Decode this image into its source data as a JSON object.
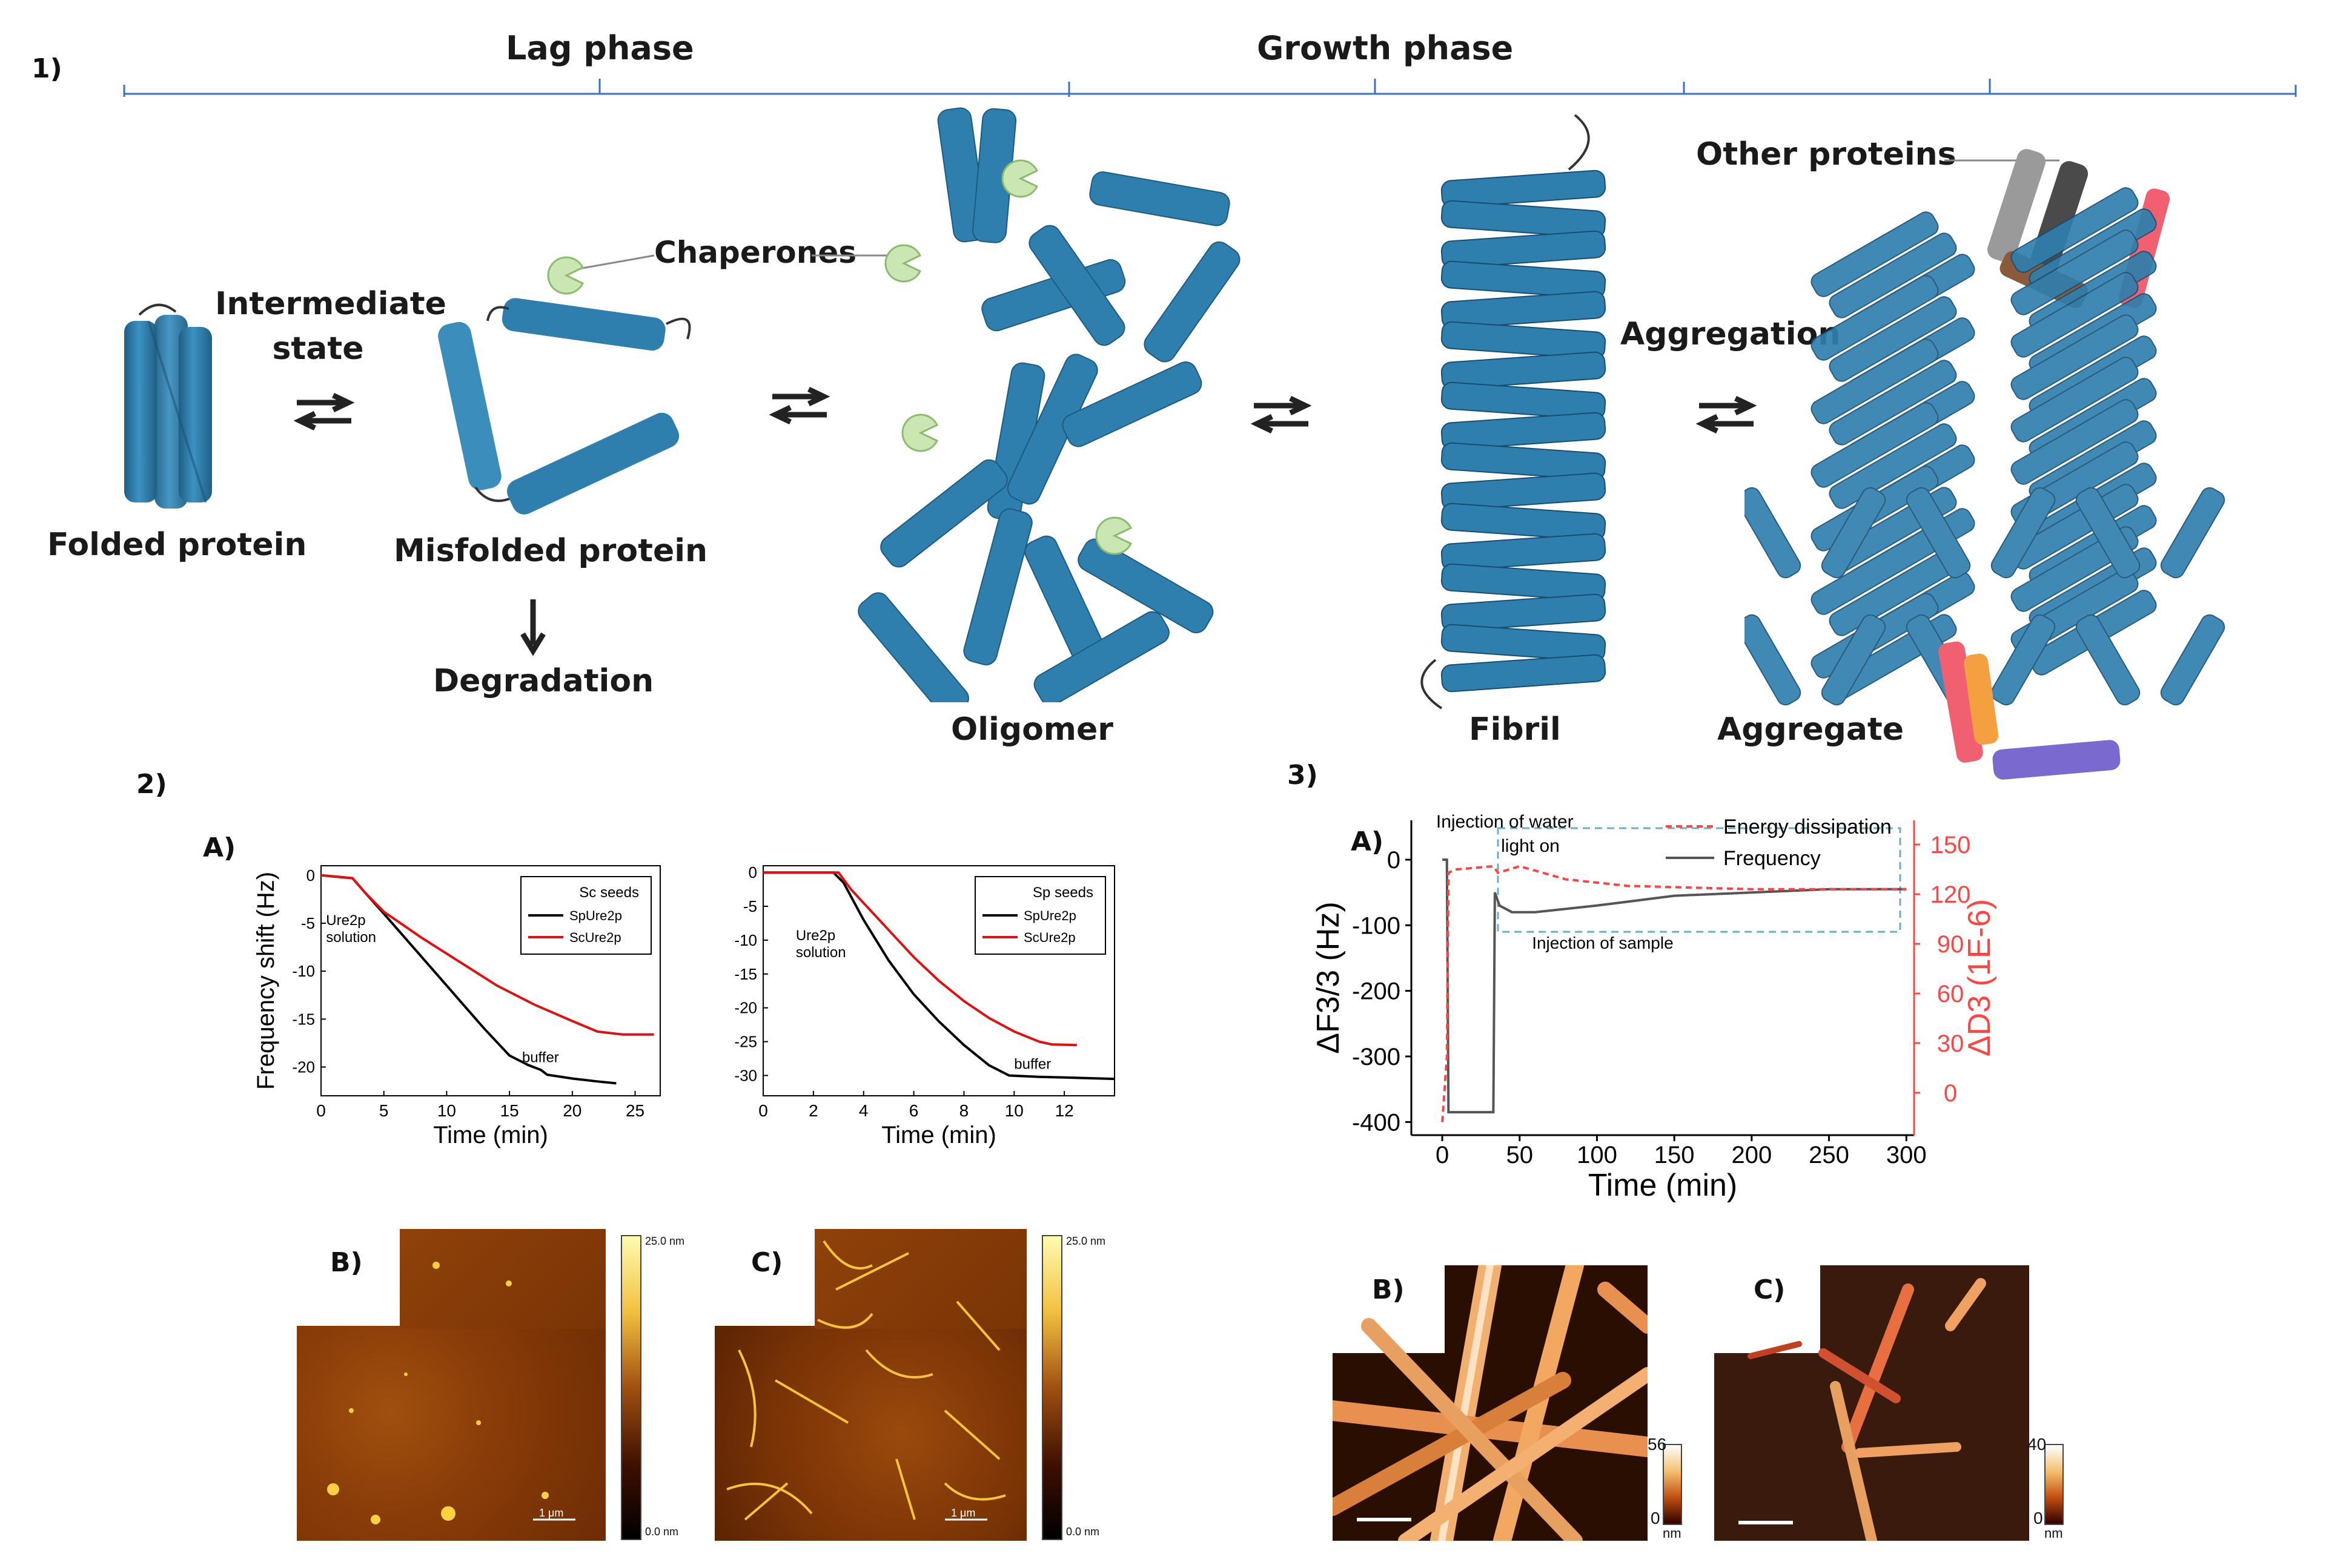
{
  "panel1": {
    "label": "1)",
    "lag_phase": "Lag phase",
    "growth_phase": "Growth phase",
    "folded_protein": "Folded protein",
    "intermediate_state": "Intermediate state",
    "misfolded_protein": "Misfolded protein",
    "degradation": "Degradation",
    "chaperones": "Chaperones",
    "oligomer": "Oligomer",
    "fibril": "Fibril",
    "aggregation": "Aggregation",
    "other_proteins": "Other proteins",
    "aggregate": "Aggregate",
    "colors": {
      "helix": "#2e7fae",
      "chaperone": "#c9e6b3",
      "timeline": "#3a6fd0"
    }
  },
  "panel2": {
    "label": "2)",
    "A_label": "A)",
    "B_label": "B)",
    "C_label": "C)",
    "afm_B": {
      "scale_max": "25.0 nm",
      "scale_min": "0.0 nm",
      "scalebar": "1 μm"
    },
    "afm_C": {
      "scale_max": "25.0 nm",
      "scale_min": "0.0 nm",
      "scalebar": "1 μm"
    }
  },
  "panel3": {
    "label": "3)",
    "A_label": "A)",
    "B_label": "B)",
    "C_label": "C)",
    "afm_B": {
      "scale_max": "56",
      "scale_min": "0",
      "unit": "nm"
    },
    "afm_C": {
      "scale_max": "40",
      "scale_min": "0",
      "unit": "nm"
    }
  },
  "chart_data": [
    {
      "type": "line",
      "legend_title": "Sc seeds",
      "xlabel": "Time (min)",
      "ylabel": "Frequency shift (Hz)",
      "xlim": [
        0,
        27
      ],
      "ylim": [
        -23,
        1
      ],
      "xticks": [
        0,
        5,
        10,
        15,
        20,
        25
      ],
      "yticks": [
        0,
        -5,
        -10,
        -15,
        -20
      ],
      "series": [
        {
          "name": "SpUre2p",
          "color": "#000000",
          "x": [
            0,
            2.5,
            3.5,
            5,
            7,
            9,
            11,
            13,
            15,
            16.5,
            17.5,
            18,
            20,
            22,
            23.5
          ],
          "y": [
            0,
            -0.3,
            -1.8,
            -4,
            -7,
            -10,
            -13,
            -16,
            -18.8,
            -19.8,
            -20.3,
            -20.8,
            -21.2,
            -21.5,
            -21.7
          ]
        },
        {
          "name": "ScUre2p",
          "color": "#e01010",
          "x": [
            0,
            2.5,
            3.5,
            5,
            8,
            11,
            14,
            17,
            20,
            22,
            24,
            26.5
          ],
          "y": [
            0,
            -0.3,
            -1.8,
            -3.8,
            -6.5,
            -9,
            -11.5,
            -13.5,
            -15.2,
            -16.3,
            -16.6,
            -16.6
          ]
        }
      ],
      "annotations": [
        "Ure2p solution",
        "buffer"
      ]
    },
    {
      "type": "line",
      "legend_title": "Sp seeds",
      "xlabel": "Time (min)",
      "ylabel": "",
      "xlim": [
        0,
        14
      ],
      "ylim": [
        -33,
        1
      ],
      "xticks": [
        0,
        2,
        4,
        6,
        8,
        10,
        12
      ],
      "yticks": [
        0,
        -5,
        -10,
        -15,
        -20,
        -25,
        -30
      ],
      "series": [
        {
          "name": "SpUre2p",
          "color": "#000000",
          "x": [
            0,
            2.8,
            3.2,
            4,
            5,
            6,
            7,
            8,
            9,
            9.8,
            11,
            12,
            14
          ],
          "y": [
            0,
            0,
            -1.5,
            -7,
            -13,
            -18,
            -22,
            -25.5,
            -28.5,
            -30,
            -30.2,
            -30.3,
            -30.5
          ]
        },
        {
          "name": "ScUre2p",
          "color": "#e01010",
          "x": [
            0,
            3,
            3.5,
            5,
            6,
            7,
            8,
            9,
            10,
            11,
            11.5,
            12.5
          ],
          "y": [
            0,
            0,
            -2.5,
            -8.5,
            -12.5,
            -16,
            -19,
            -21.5,
            -23.5,
            -25,
            -25.4,
            -25.5
          ]
        }
      ],
      "annotations": [
        "Ure2p solution",
        "buffer"
      ]
    },
    {
      "type": "line",
      "xlabel": "Time (min)",
      "ylabel": "ΔF3/3 (Hz)",
      "ylabel_right": "ΔD3 (1E-6)",
      "xlim": [
        -20,
        305
      ],
      "ylim": [
        -420,
        60
      ],
      "xticks": [
        0,
        50,
        100,
        150,
        200,
        250,
        300
      ],
      "yticks": [
        0,
        -100,
        -200,
        -300,
        -400
      ],
      "yticks_right": [
        150,
        120,
        90,
        60,
        30,
        0
      ],
      "series": [
        {
          "name": "Frequency",
          "color": "#555555",
          "x": [
            0,
            3,
            4,
            33,
            34,
            37,
            45,
            60,
            100,
            150,
            200,
            250,
            300
          ],
          "y": [
            0,
            0,
            -385,
            -385,
            -50,
            -70,
            -80,
            -80,
            -70,
            -55,
            -50,
            -45,
            -45
          ]
        },
        {
          "name": "Energy dissipation",
          "color": "#ff4444",
          "x": [
            0,
            3,
            4,
            8,
            33,
            36,
            50,
            80,
            120,
            200,
            300
          ],
          "y": [
            -400,
            -300,
            -20,
            -15,
            -10,
            -20,
            -10,
            -30,
            -40,
            -45,
            -45
          ]
        }
      ],
      "annotations": [
        "Injection of water",
        "light on",
        "Injection of sample"
      ]
    }
  ]
}
